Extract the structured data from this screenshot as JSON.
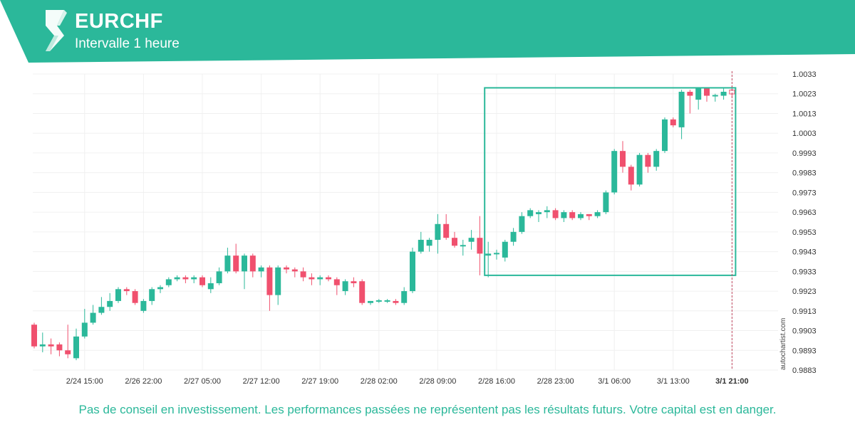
{
  "header": {
    "symbol": "EURCHF",
    "interval": "Intervalle 1 heure",
    "brand_color": "#2bb89a",
    "logo_icon": "autochartist-logo-icon"
  },
  "watermark": "autochartist.com",
  "disclaimer": "Pas de conseil en investissement. Les performances passées ne représentent pas les résultats futurs. Votre capital est en danger.",
  "chart_data": {
    "type": "candlestick",
    "title": "",
    "xlabel": "",
    "ylabel": "",
    "ylim": [
      0.9883,
      1.0033
    ],
    "yticks": [
      "1.0033",
      "1.0023",
      "1.0013",
      "1.0003",
      "0.9993",
      "0.9983",
      "0.9973",
      "0.9963",
      "0.9953",
      "0.9943",
      "0.9933",
      "0.9923",
      "0.9913",
      "0.9903",
      "0.9893",
      "0.9883"
    ],
    "xticks": [
      {
        "label": "2/24 15:00",
        "index": 6
      },
      {
        "label": "2/26 22:00",
        "index": 13
      },
      {
        "label": "2/27 05:00",
        "index": 20
      },
      {
        "label": "2/27 12:00",
        "index": 27
      },
      {
        "label": "2/27 19:00",
        "index": 34
      },
      {
        "label": "2/28 02:00",
        "index": 41
      },
      {
        "label": "2/28 09:00",
        "index": 48
      },
      {
        "label": "2/28 16:00",
        "index": 55
      },
      {
        "label": "2/28 23:00",
        "index": 62
      },
      {
        "label": "3/1 06:00",
        "index": 69
      },
      {
        "label": "3/1 13:00",
        "index": 76
      },
      {
        "label": "3/1 21:00",
        "index": 83,
        "bold": true
      }
    ],
    "grid": true,
    "up_color": "#2bb89a",
    "down_color": "#f0506e",
    "candles": [
      [
        0.9906,
        0.9895,
        0.9907,
        0.9894
      ],
      [
        0.9895,
        0.9896,
        0.9902,
        0.9892
      ],
      [
        0.9896,
        0.9895,
        0.9899,
        0.9891
      ],
      [
        0.9896,
        0.9893,
        0.9897,
        0.989
      ],
      [
        0.9893,
        0.9891,
        0.9906,
        0.9889
      ],
      [
        0.9889,
        0.99,
        0.9904,
        0.9888
      ],
      [
        0.99,
        0.9907,
        0.9914,
        0.9899
      ],
      [
        0.9907,
        0.9912,
        0.9916,
        0.9906
      ],
      [
        0.9912,
        0.9915,
        0.992,
        0.9911
      ],
      [
        0.9915,
        0.9918,
        0.9922,
        0.9913
      ],
      [
        0.9918,
        0.9924,
        0.9925,
        0.9917
      ],
      [
        0.9924,
        0.9923,
        0.9925,
        0.9921
      ],
      [
        0.9923,
        0.9917,
        0.9924,
        0.9916
      ],
      [
        0.9913,
        0.9918,
        0.9919,
        0.9912
      ],
      [
        0.9918,
        0.9924,
        0.9925,
        0.9916
      ],
      [
        0.9924,
        0.9925,
        0.9926,
        0.9922
      ],
      [
        0.9926,
        0.9929,
        0.993,
        0.9925
      ],
      [
        0.9929,
        0.993,
        0.9931,
        0.9928
      ],
      [
        0.993,
        0.9929,
        0.9931,
        0.9927
      ],
      [
        0.9929,
        0.993,
        0.9931,
        0.9927
      ],
      [
        0.993,
        0.9926,
        0.9931,
        0.9925
      ],
      [
        0.9924,
        0.9927,
        0.993,
        0.9922
      ],
      [
        0.9927,
        0.9933,
        0.9935,
        0.9926
      ],
      [
        0.9933,
        0.9941,
        0.9945,
        0.9932
      ],
      [
        0.9941,
        0.9933,
        0.9947,
        0.9932
      ],
      [
        0.9933,
        0.9941,
        0.9942,
        0.9924
      ],
      [
        0.9941,
        0.9933,
        0.9942,
        0.993
      ],
      [
        0.9933,
        0.9935,
        0.9936,
        0.993
      ],
      [
        0.9935,
        0.9921,
        0.9936,
        0.9913
      ],
      [
        0.9921,
        0.9935,
        0.9936,
        0.9916
      ],
      [
        0.9935,
        0.9934,
        0.9936,
        0.9932
      ],
      [
        0.9934,
        0.9933,
        0.9935,
        0.993
      ],
      [
        0.9933,
        0.993,
        0.9935,
        0.9928
      ],
      [
        0.993,
        0.9929,
        0.9932,
        0.9926
      ],
      [
        0.9929,
        0.993,
        0.9931,
        0.9926
      ],
      [
        0.993,
        0.9929,
        0.9931,
        0.9928
      ],
      [
        0.9929,
        0.9926,
        0.993,
        0.9921
      ],
      [
        0.9923,
        0.9928,
        0.9929,
        0.9921
      ],
      [
        0.9928,
        0.9927,
        0.993,
        0.9925
      ],
      [
        0.9928,
        0.9917,
        0.9929,
        0.9916
      ],
      [
        0.9917,
        0.9918,
        0.9918,
        0.9916
      ],
      [
        0.9918,
        0.9918,
        0.9919,
        0.9917
      ],
      [
        0.9918,
        0.9918,
        0.9919,
        0.9917
      ],
      [
        0.9918,
        0.9917,
        0.9919,
        0.9916
      ],
      [
        0.9917,
        0.9923,
        0.9925,
        0.9916
      ],
      [
        0.9923,
        0.9943,
        0.9945,
        0.9922
      ],
      [
        0.9943,
        0.9949,
        0.9953,
        0.9942
      ],
      [
        0.9946,
        0.9949,
        0.995,
        0.9943
      ],
      [
        0.9949,
        0.9957,
        0.9962,
        0.9942
      ],
      [
        0.9957,
        0.995,
        0.9962,
        0.9949
      ],
      [
        0.995,
        0.9946,
        0.9953,
        0.9945
      ],
      [
        0.9946,
        0.9946,
        0.9949,
        0.9941
      ],
      [
        0.9948,
        0.995,
        0.9954,
        0.9944
      ],
      [
        0.995,
        0.9942,
        0.9961,
        0.9931
      ],
      [
        0.9941,
        0.9942,
        0.9948,
        0.993
      ],
      [
        0.9942,
        0.9942,
        0.9944,
        0.9939
      ],
      [
        0.994,
        0.9948,
        0.9949,
        0.9938
      ],
      [
        0.9948,
        0.9953,
        0.9955,
        0.9946
      ],
      [
        0.9953,
        0.9961,
        0.9963,
        0.9952
      ],
      [
        0.9961,
        0.9964,
        0.9965,
        0.996
      ],
      [
        0.9962,
        0.9963,
        0.9964,
        0.9958
      ],
      [
        0.9963,
        0.9964,
        0.9966,
        0.996
      ],
      [
        0.9964,
        0.996,
        0.9965,
        0.9959
      ],
      [
        0.996,
        0.9963,
        0.9964,
        0.9958
      ],
      [
        0.9963,
        0.996,
        0.9964,
        0.9959
      ],
      [
        0.996,
        0.9962,
        0.9963,
        0.9959
      ],
      [
        0.9962,
        0.9961,
        0.9962,
        0.9959
      ],
      [
        0.9961,
        0.9963,
        0.9964,
        0.996
      ],
      [
        0.9963,
        0.9973,
        0.9974,
        0.9962
      ],
      [
        0.9973,
        0.9994,
        0.9995,
        0.9972
      ],
      [
        0.9994,
        0.9986,
        0.9999,
        0.9983
      ],
      [
        0.9986,
        0.9977,
        0.9987,
        0.9974
      ],
      [
        0.9977,
        0.9992,
        0.9993,
        0.9976
      ],
      [
        0.9992,
        0.9986,
        0.9993,
        0.9983
      ],
      [
        0.9986,
        0.9994,
        0.9995,
        0.9984
      ],
      [
        0.9994,
        1.001,
        1.0011,
        0.9993
      ],
      [
        1.001,
        1.0007,
        1.0011,
        1.0006
      ],
      [
        1.0006,
        1.0024,
        1.0025,
        1.0
      ],
      [
        1.0024,
        1.0022,
        1.0025,
        1.0013
      ],
      [
        1.002,
        1.0026,
        1.0026,
        1.0015
      ],
      [
        1.0026,
        1.0022,
        1.0026,
        1.0019
      ],
      [
        1.0022,
        1.0022,
        1.0023,
        1.0019
      ],
      [
        1.0022,
        1.0024,
        1.0026,
        1.002
      ],
      [
        1.0024,
        1.0022,
        1.0027,
        1.0021
      ]
    ],
    "highlight_box": {
      "from_index": 54,
      "to_index": 83,
      "low": 0.9931,
      "high": 1.0026
    },
    "current_marker_index": 83
  }
}
